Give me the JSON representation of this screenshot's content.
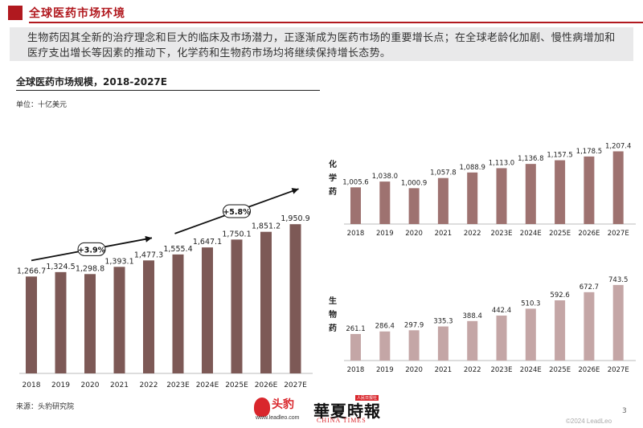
{
  "header": {
    "title": "全球医药市场环境",
    "intro": "生物药因其全新的治疗理念和巨大的临床及市场潜力，正逐渐成为医药市场的重要增长点；在全球老龄化加剧、慢性病增加和医疗支出增长等因素的推动下，化学药和生物药市场均将继续保持增长态势。"
  },
  "section": {
    "title": "全球医药市场规模，2018-2027E",
    "unit": "单位：十亿美元"
  },
  "footer": {
    "source": "来源：头豹研究院",
    "page": "3",
    "copyright": "©2024 LeadLeo"
  },
  "logos": {
    "leadleo_cn": "头豹",
    "leadleo_url": "www.leadleo.com",
    "chinatimes_cn": "華夏時報",
    "chinatimes_en": "CHINA TIMES",
    "chinatimes_tag": "人民日报社"
  },
  "colors": {
    "brand_red": "#b1191f",
    "main_bar": "#7d5956",
    "chem_bar": "#9e7270",
    "bio_bar": "#c4a6a6"
  },
  "chart_data": [
    {
      "type": "bar",
      "categories": [
        "2018",
        "2019",
        "2020",
        "2021",
        "2022",
        "2023E",
        "2024E",
        "2025E",
        "2026E",
        "2027E"
      ],
      "values": [
        1266.7,
        1324.5,
        1298.8,
        1393.1,
        1477.3,
        1555.4,
        1647.1,
        1750.1,
        1851.2,
        1950.9
      ],
      "value_labels": [
        "1,266.7",
        "1,324.5",
        "1,298.8",
        "1,393.1",
        "1,477.3",
        "1,555.4",
        "1,647.1",
        "1,750.1",
        "1,851.2",
        "1,950.9"
      ],
      "annotations": [
        {
          "text": "+3.9%",
          "from": "2018",
          "to": "2022"
        },
        {
          "text": "+5.8%",
          "from": "2023E",
          "to": "2027E"
        }
      ],
      "ylim": [
        0,
        2100
      ]
    },
    {
      "type": "bar",
      "label": "化学药",
      "categories": [
        "2018",
        "2019",
        "2020",
        "2021",
        "2022",
        "2023E",
        "2024E",
        "2025E",
        "2026E",
        "2027E"
      ],
      "values": [
        1005.6,
        1038.0,
        1000.9,
        1057.8,
        1088.9,
        1113.0,
        1136.8,
        1157.5,
        1178.5,
        1207.4
      ],
      "value_labels": [
        "1,005.6",
        "1,038.0",
        "1,000.9",
        "1,057.8",
        "1,088.9",
        "1,113.0",
        "1,136.8",
        "1,157.5",
        "1,178.5",
        "1,207.4"
      ],
      "ylim": [
        800,
        1250
      ]
    },
    {
      "type": "bar",
      "label": "生物药",
      "categories": [
        "2018",
        "2019",
        "2020",
        "2021",
        "2022",
        "2023E",
        "2024E",
        "2025E",
        "2026E",
        "2027E"
      ],
      "values": [
        261.1,
        286.4,
        297.9,
        335.3,
        388.4,
        442.4,
        510.3,
        592.6,
        672.7,
        743.5
      ],
      "value_labels": [
        "261.1",
        "286.4",
        "297.9",
        "335.3",
        "388.4",
        "442.4",
        "510.3",
        "592.6",
        "672.7",
        "743.5"
      ],
      "ylim": [
        0,
        790
      ]
    }
  ]
}
